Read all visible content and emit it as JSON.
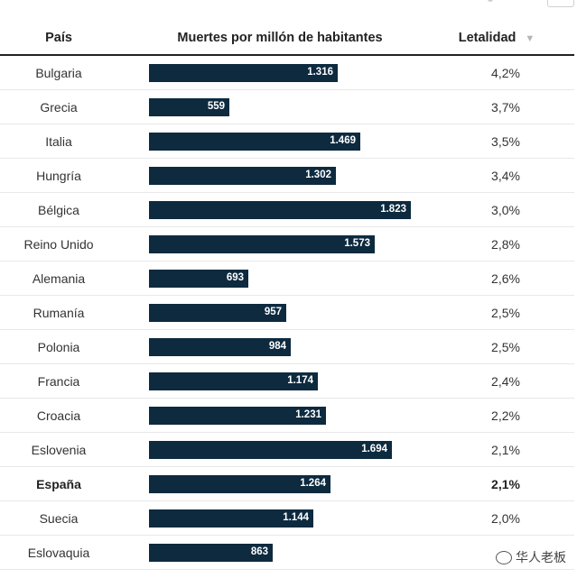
{
  "chart_data": {
    "type": "table",
    "columns": [
      "País",
      "Muertes por millón de habitantes",
      "Letalidad"
    ],
    "sort_column": "Letalidad",
    "bar_max": 2000,
    "rows": [
      {
        "country": "Bulgaria",
        "deaths": 1316,
        "deaths_label": "1.316",
        "lethality": "4,2%"
      },
      {
        "country": "Grecia",
        "deaths": 559,
        "deaths_label": "559",
        "lethality": "3,7%"
      },
      {
        "country": "Italia",
        "deaths": 1469,
        "deaths_label": "1.469",
        "lethality": "3,5%"
      },
      {
        "country": "Hungría",
        "deaths": 1302,
        "deaths_label": "1.302",
        "lethality": "3,4%"
      },
      {
        "country": "Bélgica",
        "deaths": 1823,
        "deaths_label": "1.823",
        "lethality": "3,0%"
      },
      {
        "country": "Reino Unido",
        "deaths": 1573,
        "deaths_label": "1.573",
        "lethality": "2,8%"
      },
      {
        "country": "Alemania",
        "deaths": 693,
        "deaths_label": "693",
        "lethality": "2,6%"
      },
      {
        "country": "Rumanía",
        "deaths": 957,
        "deaths_label": "957",
        "lethality": "2,5%"
      },
      {
        "country": "Polonia",
        "deaths": 984,
        "deaths_label": "984",
        "lethality": "2,5%"
      },
      {
        "country": "Francia",
        "deaths": 1174,
        "deaths_label": "1.174",
        "lethality": "2,4%"
      },
      {
        "country": "Croacia",
        "deaths": 1231,
        "deaths_label": "1.231",
        "lethality": "2,2%"
      },
      {
        "country": "Eslovenia",
        "deaths": 1694,
        "deaths_label": "1.694",
        "lethality": "2,1%"
      },
      {
        "country": "España",
        "deaths": 1264,
        "deaths_label": "1.264",
        "lethality": "2,1%",
        "highlight": true
      },
      {
        "country": "Suecia",
        "deaths": 1144,
        "deaths_label": "1.144",
        "lethality": "2,0%"
      },
      {
        "country": "Eslovaquia",
        "deaths": 863,
        "deaths_label": "863",
        "lethality": ""
      }
    ],
    "colors": {
      "bar": "#0d2a3f",
      "bar_text": "#ffffff"
    }
  },
  "header": {
    "country": "País",
    "deaths": "Muertes por millón de habitantes",
    "lethality": "Letalidad",
    "sort_icon": "▼"
  },
  "watermark": {
    "text": "华人老板"
  }
}
